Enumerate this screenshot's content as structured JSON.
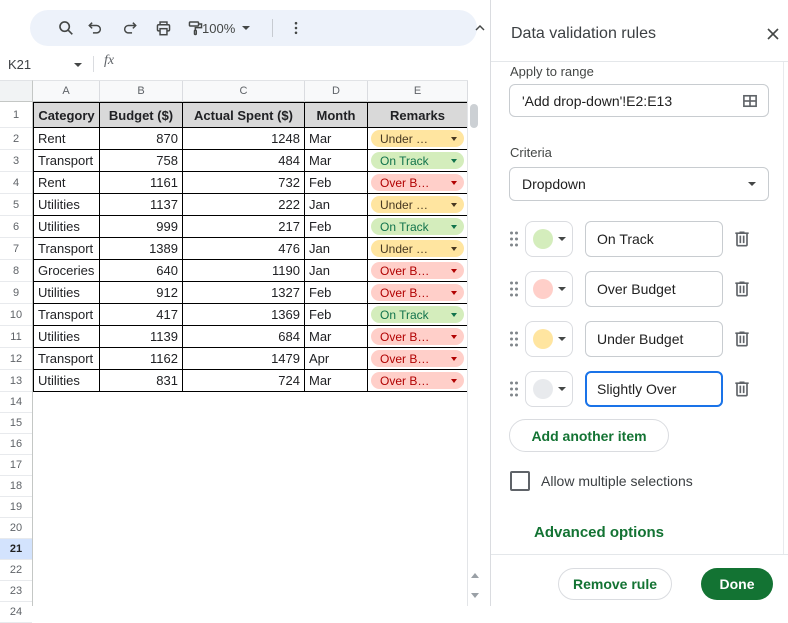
{
  "toolbar": {
    "zoom_value": "100%"
  },
  "formula_bar": {
    "cell_reference": "K21",
    "fx_label": "fx"
  },
  "grid": {
    "column_letters": [
      "A",
      "B",
      "C",
      "D",
      "E"
    ],
    "row_numbers": [
      1,
      2,
      3,
      4,
      5,
      6,
      7,
      8,
      9,
      10,
      11,
      12,
      13,
      14,
      15,
      16,
      17,
      18,
      19,
      20,
      21,
      22,
      23,
      24
    ],
    "selected_row": 21,
    "table": {
      "headers": [
        "Category",
        "Budget ($)",
        "Actual Spent ($)",
        "Month",
        "Remarks"
      ],
      "rows": [
        {
          "category": "Rent",
          "budget": "870",
          "actual": "1248",
          "month": "Mar",
          "remark": "under"
        },
        {
          "category": "Transport",
          "budget": "758",
          "actual": "484",
          "month": "Mar",
          "remark": "ontrack"
        },
        {
          "category": "Rent",
          "budget": "1161",
          "actual": "732",
          "month": "Feb",
          "remark": "over"
        },
        {
          "category": "Utilities",
          "budget": "1137",
          "actual": "222",
          "month": "Jan",
          "remark": "under"
        },
        {
          "category": "Utilities",
          "budget": "999",
          "actual": "217",
          "month": "Feb",
          "remark": "ontrack"
        },
        {
          "category": "Transport",
          "budget": "1389",
          "actual": "476",
          "month": "Jan",
          "remark": "under"
        },
        {
          "category": "Groceries",
          "budget": "640",
          "actual": "1190",
          "month": "Jan",
          "remark": "over"
        },
        {
          "category": "Utilities",
          "budget": "912",
          "actual": "1327",
          "month": "Feb",
          "remark": "over"
        },
        {
          "category": "Transport",
          "budget": "417",
          "actual": "1369",
          "month": "Feb",
          "remark": "ontrack"
        },
        {
          "category": "Utilities",
          "budget": "1139",
          "actual": "684",
          "month": "Mar",
          "remark": "over"
        },
        {
          "category": "Transport",
          "budget": "1162",
          "actual": "1479",
          "month": "Apr",
          "remark": "over"
        },
        {
          "category": "Utilities",
          "budget": "831",
          "actual": "724",
          "month": "Mar",
          "remark": "over"
        }
      ],
      "remark_chips": {
        "ontrack": {
          "label": "On Track",
          "bg": "#d4edbc",
          "fg": "#11734b"
        },
        "over": {
          "label": "Over B…",
          "bg": "#ffcfc9",
          "fg": "#b10202"
        },
        "under": {
          "label": "Under …",
          "bg": "#ffe5a0",
          "fg": "#473821"
        }
      }
    }
  },
  "panel": {
    "title": "Data validation rules",
    "apply_to_range_label": "Apply to range",
    "range_value": "'Add drop-down'!E2:E13",
    "criteria_label": "Criteria",
    "criteria_value": "Dropdown",
    "items": [
      {
        "color": "#d4edbc",
        "value": "On Track",
        "focused": false
      },
      {
        "color": "#ffcfc9",
        "value": "Over Budget",
        "focused": false
      },
      {
        "color": "#ffe5a0",
        "value": "Under Budget",
        "focused": false
      },
      {
        "color": "#e8eaed",
        "value": "Slightly Over",
        "focused": true
      }
    ],
    "add_item_label": "Add another item",
    "multi_select_label": "Allow multiple selections",
    "multi_select_checked": false,
    "advanced_options_label": "Advanced options",
    "remove_rule_label": "Remove rule",
    "done_label": "Done",
    "accent_green": "#137333",
    "focus_blue": "#1a73e8"
  }
}
